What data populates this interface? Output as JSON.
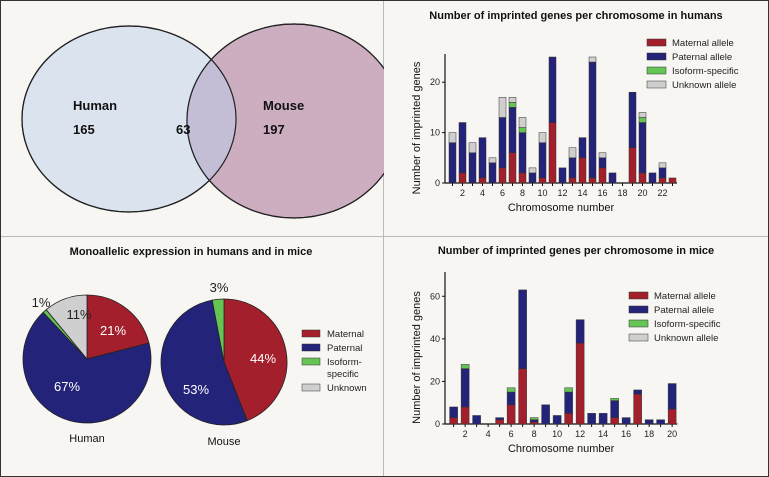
{
  "colors": {
    "maternal": "#a31f2b",
    "paternal": "#24237a",
    "isoform": "#66c455",
    "unknown": "#cfcfcf",
    "human_venn": "#dbe3ef",
    "mouse_venn": "#cdaec1",
    "overlap_venn": "#c3bed6"
  },
  "venn": {
    "left_label": "Human",
    "left_value": "165",
    "overlap_value": "63",
    "right_label": "Mouse",
    "right_value": "197"
  },
  "chart_data": [
    {
      "type": "bar",
      "stacked": true,
      "title": "Number of imprinted genes per chromosome in humans",
      "xlabel": "Chromosome number",
      "ylabel": "Number of imprinted genes",
      "ylim": [
        0,
        25
      ],
      "yticks": [
        0,
        10,
        20
      ],
      "categories": [
        "1",
        "2",
        "3",
        "4",
        "5",
        "6",
        "7",
        "8",
        "9",
        "10",
        "11",
        "12",
        "13",
        "14",
        "15",
        "16",
        "17",
        "18",
        "19",
        "20",
        "21",
        "22",
        "X"
      ],
      "xtick_labels": [
        "2",
        "4",
        "6",
        "8",
        "10",
        "12",
        "14",
        "16",
        "18",
        "20",
        "22"
      ],
      "legend": "top-right",
      "series": [
        {
          "name": "Maternal allele",
          "key": "maternal",
          "values": [
            0,
            2,
            0,
            1,
            0,
            3,
            6,
            2,
            0,
            1,
            12,
            0,
            1,
            5,
            1,
            3,
            0,
            0,
            7,
            2,
            0,
            1,
            1
          ]
        },
        {
          "name": "Paternal allele",
          "key": "paternal",
          "values": [
            8,
            10,
            6,
            8,
            4,
            10,
            9,
            8,
            2,
            7,
            13,
            3,
            4,
            4,
            23,
            2,
            2,
            0,
            11,
            10,
            2,
            2,
            0
          ]
        },
        {
          "name": "Isoform-specific",
          "key": "isoform",
          "values": [
            0,
            0,
            0,
            0,
            0,
            0,
            1,
            1,
            0,
            0,
            0,
            0,
            0,
            0,
            0,
            0,
            0,
            0,
            0,
            1,
            0,
            0,
            0
          ]
        },
        {
          "name": "Unknown allele",
          "key": "unknown",
          "values": [
            2,
            0,
            2,
            0,
            1,
            4,
            1,
            2,
            1,
            2,
            0,
            0,
            2,
            0,
            1,
            1,
            0,
            0,
            0,
            1,
            0,
            1,
            0
          ]
        }
      ]
    },
    {
      "type": "pie",
      "title": "Monoallelic expression in humans and in mice",
      "legend": "right",
      "legend_entries": [
        "Maternal",
        "Paternal",
        "Isoform-\nspecific",
        "Unknown"
      ],
      "legend_lines": [
        [
          "Maternal"
        ],
        [
          "Paternal"
        ],
        [
          "Isoform-",
          "specific"
        ],
        [
          "Unknown"
        ]
      ],
      "pies": [
        {
          "name": "Human",
          "slices": [
            {
              "label": "Maternal",
              "key": "maternal",
              "value": 21,
              "text": "21%"
            },
            {
              "label": "Paternal",
              "key": "paternal",
              "value": 67,
              "text": "67%"
            },
            {
              "label": "Isoform-specific",
              "key": "isoform",
              "value": 1,
              "text": "1%"
            },
            {
              "label": "Unknown",
              "key": "unknown",
              "value": 11,
              "text": "11%"
            }
          ]
        },
        {
          "name": "Mouse",
          "slices": [
            {
              "label": "Maternal",
              "key": "maternal",
              "value": 44,
              "text": "44%"
            },
            {
              "label": "Paternal",
              "key": "paternal",
              "value": 53,
              "text": "53%"
            },
            {
              "label": "Isoform-specific",
              "key": "isoform",
              "value": 3,
              "text": "3%"
            }
          ]
        }
      ]
    },
    {
      "type": "bar",
      "stacked": true,
      "title": "Number of imprinted genes per chromosome in mice",
      "xlabel": "Chromosome number",
      "ylabel": "Number of imprinted genes",
      "ylim": [
        0,
        70
      ],
      "yticks": [
        0,
        20,
        40,
        60
      ],
      "categories": [
        "1",
        "2",
        "3",
        "4",
        "5",
        "6",
        "7",
        "8",
        "9",
        "10",
        "11",
        "12",
        "13",
        "14",
        "15",
        "16",
        "17",
        "18",
        "19",
        "X"
      ],
      "xtick_labels": [
        "2",
        "4",
        "6",
        "8",
        "10",
        "12",
        "14",
        "16",
        "18",
        "20"
      ],
      "legend": "top-right",
      "series": [
        {
          "name": "Maternal allele",
          "key": "maternal",
          "values": [
            3,
            8,
            0,
            0,
            2,
            9,
            26,
            1,
            0,
            0,
            5,
            38,
            0,
            0,
            3,
            0,
            14,
            0,
            0,
            7
          ]
        },
        {
          "name": "Paternal allele",
          "key": "paternal",
          "values": [
            5,
            18,
            4,
            0,
            1,
            6,
            37,
            1,
            9,
            4,
            10,
            11,
            5,
            5,
            8,
            3,
            2,
            2,
            2,
            12
          ]
        },
        {
          "name": "Isoform-specific",
          "key": "isoform",
          "values": [
            0,
            2,
            0,
            0,
            0,
            2,
            0,
            1,
            0,
            0,
            2,
            0,
            0,
            0,
            1,
            0,
            0,
            0,
            0,
            0
          ]
        },
        {
          "name": "Unknown allele",
          "key": "unknown",
          "values": [
            0,
            0,
            0,
            0,
            0,
            0,
            0,
            0,
            0,
            0,
            0,
            0,
            0,
            0,
            0,
            0,
            0,
            0,
            0,
            0
          ]
        }
      ]
    }
  ]
}
